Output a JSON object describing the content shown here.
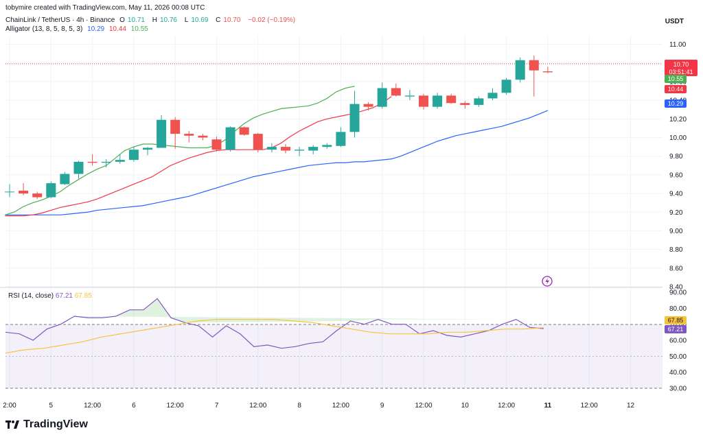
{
  "header": {
    "credit": "tobymire created with TradingView.com, May 11, 2026 00:08 UTC",
    "symbol": "ChainLink / TetherUS · 4h · Binance",
    "o_label": "O",
    "o": "10.71",
    "h_label": "H",
    "h": "10.76",
    "l_label": "L",
    "l": "10.69",
    "c_label": "C",
    "c": "10.70",
    "change": "−0.02 (−0.19%)",
    "alligator_label": "Alligator (13, 8, 5, 8, 5, 3)",
    "jaw": "10.29",
    "teeth": "10.44",
    "lips": "10.55"
  },
  "rsi_legend": {
    "label": "RSI (14, close)",
    "rsi": "67.21",
    "ma": "67.85"
  },
  "axis_unit": "USDT",
  "price_tags": {
    "last": "10.70",
    "countdown": "03:51:41",
    "lips": "10.55",
    "teeth": "10.44",
    "jaw": "10.29"
  },
  "rsi_tags": {
    "ma": "67.85",
    "rsi": "67.21"
  },
  "brand": "TradingView",
  "colors": {
    "up": "#26a69a",
    "down": "#ef5350",
    "jaw": "#2962ff",
    "teeth": "#f23645",
    "lips": "#4caf50",
    "rsi": "#7e57c2",
    "rsi_ma": "#f7c23c"
  },
  "chart_data": [
    {
      "type": "candlestick",
      "title": "ChainLink / TetherUS · 4h · Binance",
      "ylim": [
        8.4,
        11.1
      ],
      "yticks": [
        "11.00",
        "10.80",
        "10.60",
        "10.40",
        "10.20",
        "10.00",
        "9.80",
        "9.60",
        "9.40",
        "9.20",
        "9.00",
        "8.80",
        "8.60",
        "8.40"
      ],
      "xticks": [
        "2:00",
        "5",
        "12:00",
        "6",
        "12:00",
        "7",
        "12:00",
        "8",
        "12:00",
        "9",
        "12:00",
        "10",
        "12:00",
        "11",
        "12:00",
        "12"
      ],
      "ohlc": [
        [
          9.42,
          9.5,
          9.36,
          9.42
        ],
        [
          9.43,
          9.51,
          9.38,
          9.4
        ],
        [
          9.4,
          9.42,
          9.34,
          9.36
        ],
        [
          9.36,
          9.53,
          9.35,
          9.51
        ],
        [
          9.5,
          9.63,
          9.49,
          9.61
        ],
        [
          9.61,
          9.75,
          9.56,
          9.74
        ],
        [
          9.74,
          9.82,
          9.7,
          9.73
        ],
        [
          9.73,
          9.77,
          9.68,
          9.74
        ],
        [
          9.74,
          9.82,
          9.72,
          9.76
        ],
        [
          9.76,
          9.9,
          9.74,
          9.87
        ],
        [
          9.87,
          9.9,
          9.81,
          9.89
        ],
        [
          9.89,
          10.24,
          9.89,
          10.19
        ],
        [
          10.19,
          10.22,
          9.88,
          10.04
        ],
        [
          10.04,
          10.07,
          9.95,
          10.02
        ],
        [
          10.02,
          10.04,
          9.97,
          10.0
        ],
        [
          9.98,
          10.01,
          9.85,
          9.87
        ],
        [
          9.87,
          10.12,
          9.85,
          10.11
        ],
        [
          10.11,
          10.12,
          10.02,
          10.03
        ],
        [
          10.04,
          10.05,
          9.84,
          9.87
        ],
        [
          9.87,
          9.94,
          9.84,
          9.9
        ],
        [
          9.9,
          9.93,
          9.83,
          9.86
        ],
        [
          9.86,
          9.9,
          9.8,
          9.87
        ],
        [
          9.86,
          9.92,
          9.82,
          9.9
        ],
        [
          9.9,
          9.94,
          9.88,
          9.92
        ],
        [
          9.91,
          10.11,
          9.9,
          10.06
        ],
        [
          10.06,
          10.5,
          10.0,
          10.36
        ],
        [
          10.36,
          10.38,
          10.29,
          10.33
        ],
        [
          10.33,
          10.59,
          10.31,
          10.53
        ],
        [
          10.53,
          10.58,
          10.44,
          10.45
        ],
        [
          10.44,
          10.51,
          10.4,
          10.45
        ],
        [
          10.45,
          10.47,
          10.3,
          10.33
        ],
        [
          10.33,
          10.48,
          10.31,
          10.45
        ],
        [
          10.45,
          10.47,
          10.36,
          10.37
        ],
        [
          10.37,
          10.39,
          10.31,
          10.35
        ],
        [
          10.35,
          10.44,
          10.33,
          10.42
        ],
        [
          10.42,
          10.53,
          10.4,
          10.48
        ],
        [
          10.48,
          10.64,
          10.46,
          10.62
        ],
        [
          10.62,
          10.86,
          10.59,
          10.83
        ],
        [
          10.83,
          10.88,
          10.44,
          10.72
        ],
        [
          10.71,
          10.76,
          10.69,
          10.7
        ]
      ],
      "series": [
        {
          "name": "Jaw",
          "values": [
            9.17,
            9.17,
            9.17,
            9.17,
            9.17,
            9.17,
            9.17,
            9.18,
            9.19,
            9.2,
            9.22,
            9.23,
            9.24,
            9.25,
            9.26,
            9.27,
            9.29,
            9.31,
            9.33,
            9.35,
            9.37,
            9.4,
            9.43,
            9.46,
            9.49,
            9.52,
            9.55,
            9.58,
            9.6,
            9.62,
            9.64,
            9.66,
            9.68,
            9.7,
            9.71,
            9.72,
            9.73,
            9.73,
            9.74,
            9.74,
            9.75,
            9.76,
            9.77,
            9.8,
            9.84,
            9.88,
            9.92,
            9.96,
            9.99,
            10.02,
            10.04,
            10.06,
            10.08,
            10.1,
            10.12,
            10.15,
            10.18,
            10.21,
            10.25,
            10.29
          ]
        },
        {
          "name": "Teeth",
          "values": [
            9.16,
            9.16,
            9.16,
            9.17,
            9.19,
            9.22,
            9.25,
            9.27,
            9.29,
            9.31,
            9.34,
            9.38,
            9.42,
            9.46,
            9.5,
            9.54,
            9.58,
            9.64,
            9.7,
            9.74,
            9.78,
            9.81,
            9.84,
            9.86,
            9.87,
            9.87,
            9.87,
            9.87,
            9.87,
            9.89,
            9.94,
            10.01,
            10.07,
            10.12,
            10.17,
            10.2,
            10.22,
            10.24,
            10.26,
            10.29,
            10.32,
            10.37,
            10.44
          ]
        },
        {
          "name": "Lips",
          "values": [
            9.17,
            9.2,
            9.26,
            9.3,
            9.33,
            9.37,
            9.42,
            9.49,
            9.55,
            9.61,
            9.66,
            9.7,
            9.78,
            9.86,
            9.9,
            9.93,
            9.93,
            9.92,
            9.91,
            9.9,
            9.89,
            9.89,
            9.89,
            9.92,
            9.98,
            10.07,
            10.15,
            10.21,
            10.25,
            10.28,
            10.31,
            10.32,
            10.33,
            10.34,
            10.37,
            10.42,
            10.49,
            10.53,
            10.55
          ]
        }
      ]
    },
    {
      "type": "line",
      "title": "RSI (14, close)",
      "ylim": [
        27,
        92
      ],
      "yticks": [
        "90.00",
        "80.00",
        "70.00",
        "60.00",
        "50.00",
        "40.00",
        "30.00"
      ],
      "bands": [
        30,
        70
      ],
      "series": [
        {
          "name": "RSI",
          "values": [
            65,
            64,
            60,
            67,
            70,
            75,
            74,
            74,
            75,
            79,
            79,
            86,
            74,
            71,
            69,
            62,
            69,
            64,
            56,
            57,
            55,
            56,
            58,
            59,
            66,
            72,
            70,
            73,
            70,
            70,
            64,
            66,
            63,
            62,
            64,
            66,
            70,
            73,
            68,
            67.21
          ]
        },
        {
          "name": "MA",
          "values": [
            52,
            54,
            55,
            57,
            59,
            62,
            64,
            66,
            68,
            70,
            72,
            73,
            73,
            73,
            73,
            72,
            71,
            69,
            67,
            65,
            64,
            64,
            64,
            65,
            65,
            66,
            67,
            67,
            67.85
          ]
        }
      ]
    }
  ]
}
